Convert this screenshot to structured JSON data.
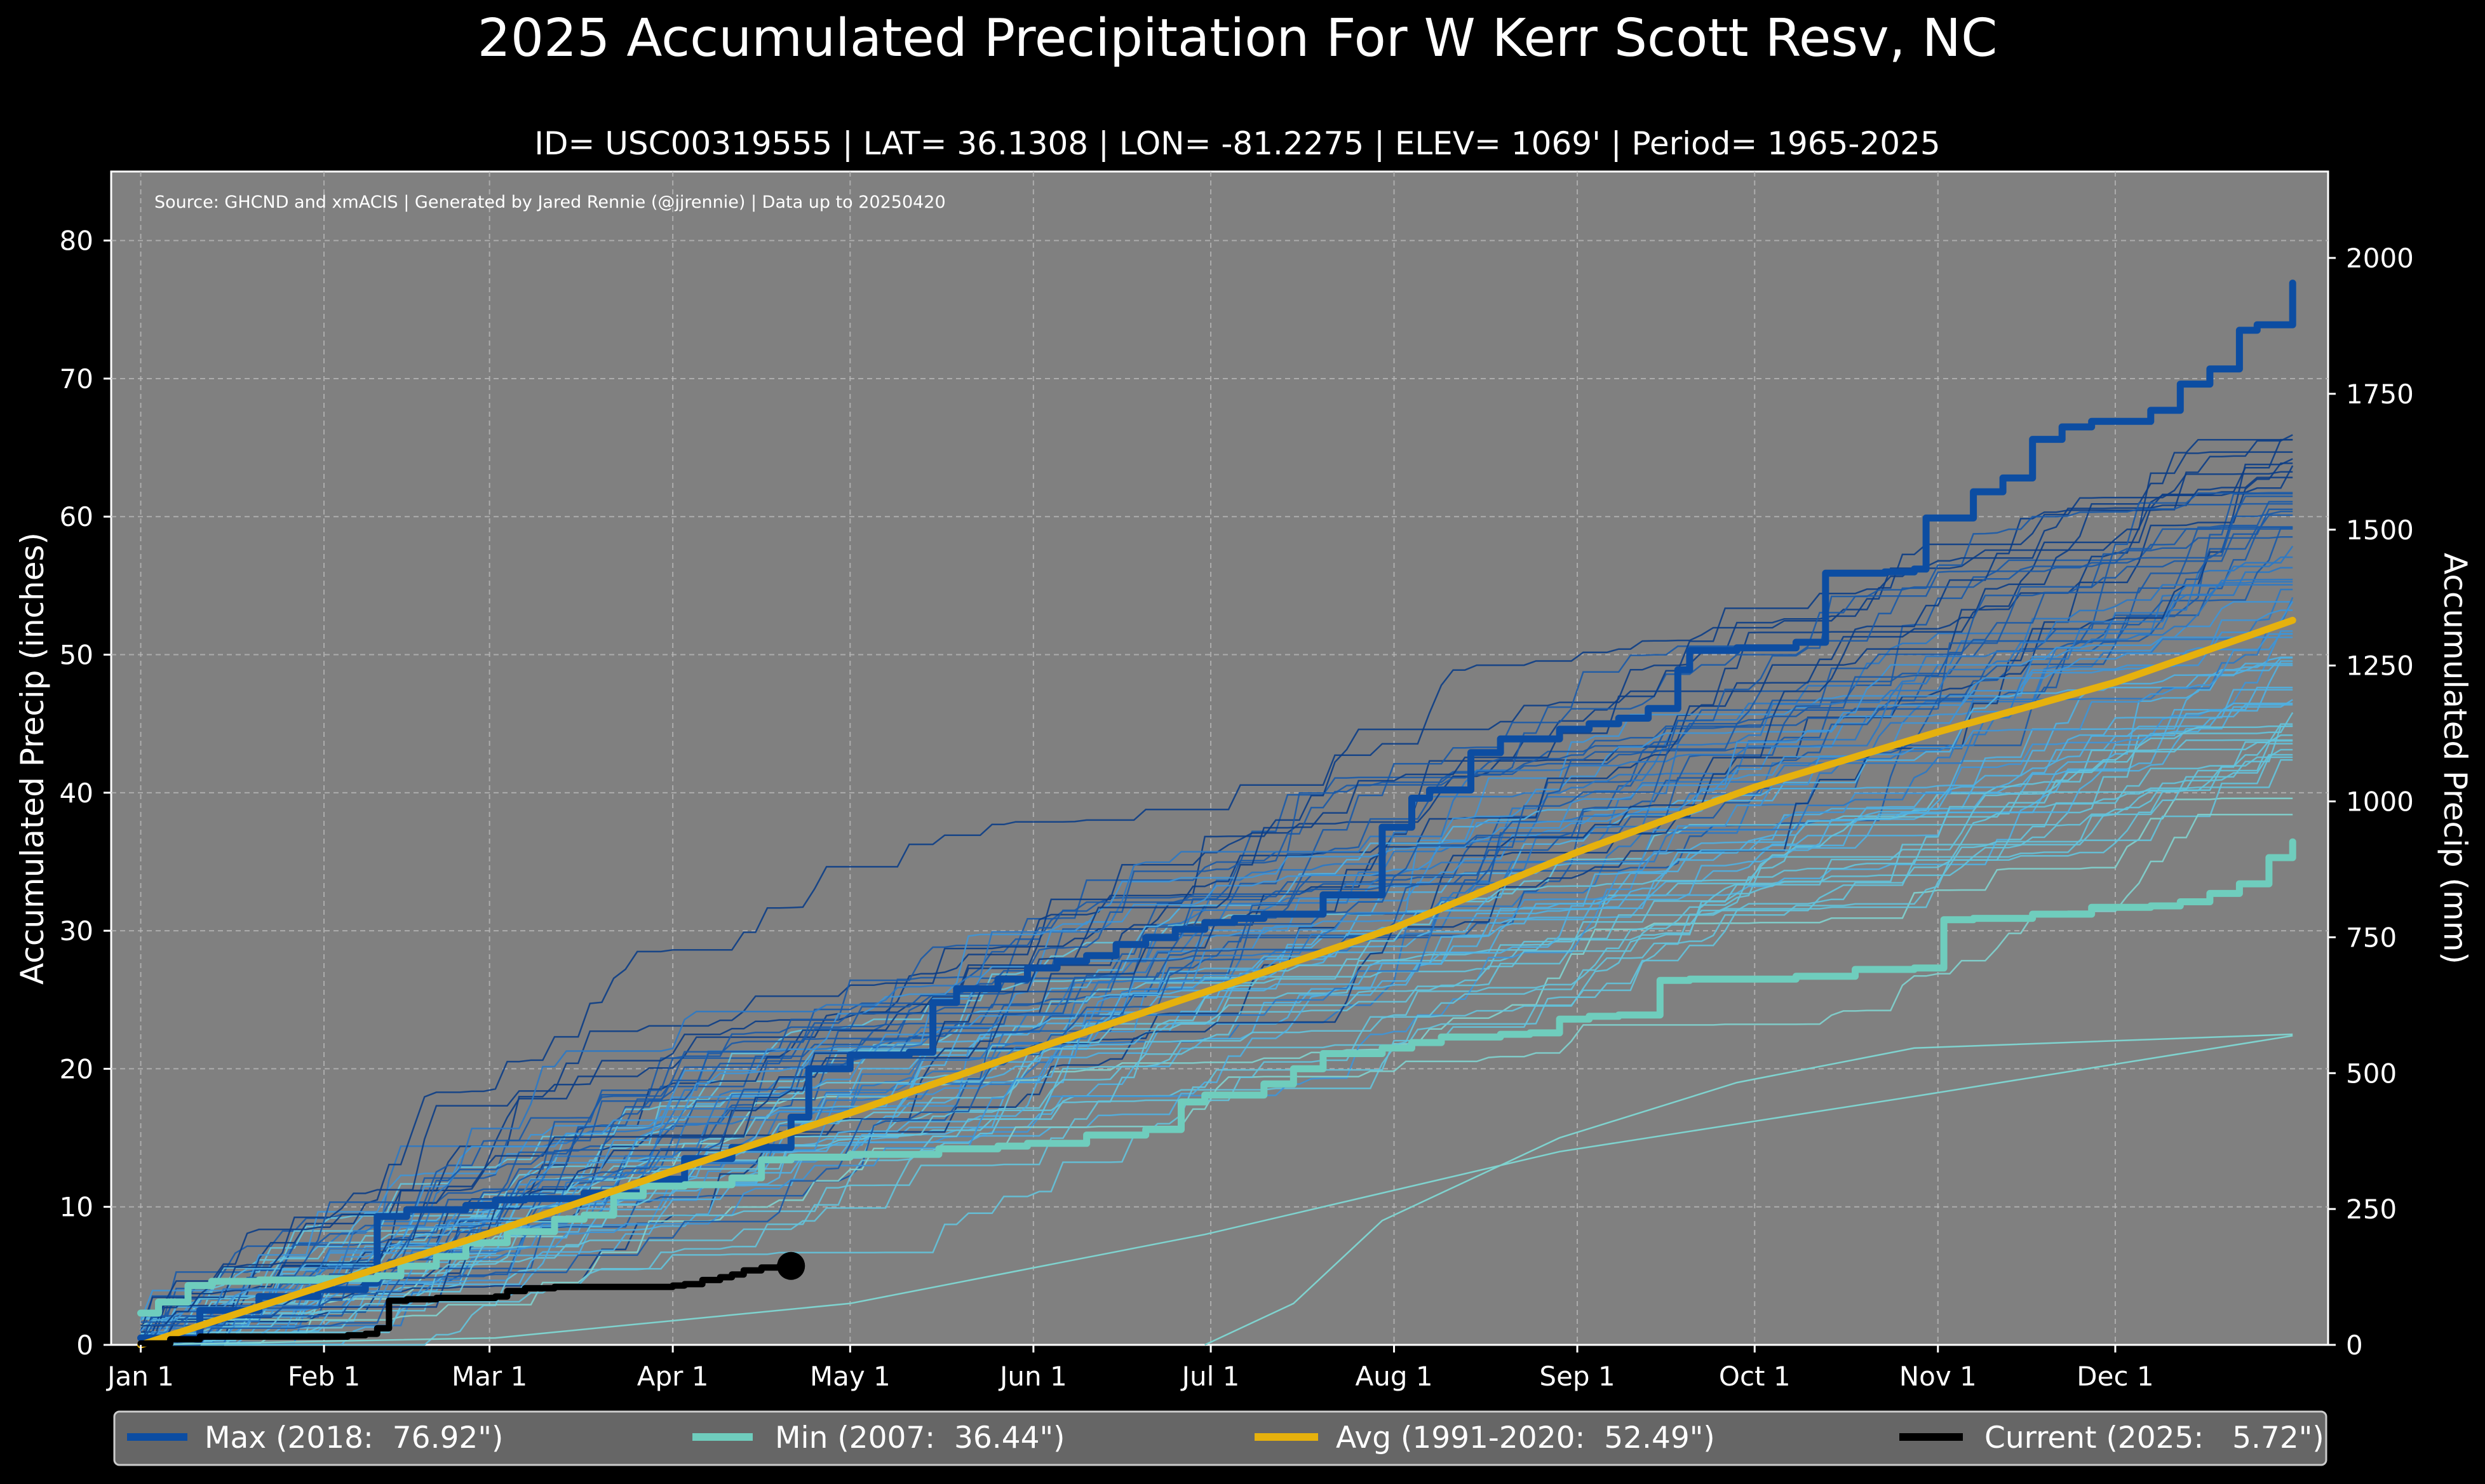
{
  "chart_data": {
    "type": "line",
    "title": "2025 Accumulated Precipitation For W Kerr Scott Resv, NC",
    "subtitle": "ID= USC00319555 | LAT= 36.1308 | LON= -81.2275 | ELEV= 1069' | Period= 1965-2025",
    "source": "Source: GHCND and xmACIS | Generated by Jared Rennie (@jjrennie) | Data up to 20250420",
    "ylabel": "Accumulated Precip (inches)",
    "ylabel_right": "Accumulated Precip (mm)",
    "xlabel": "",
    "ylim": [
      0,
      85
    ],
    "xlim": [
      -5,
      370
    ],
    "y_ticks": [
      "0",
      "10",
      "20",
      "30",
      "40",
      "50",
      "60",
      "70",
      "80"
    ],
    "y_ticks_right": [
      "0",
      "250",
      "500",
      "750",
      "1000",
      "1250",
      "1500",
      "1750",
      "2000"
    ],
    "x_ticks": [
      {
        "day": 0,
        "label": "Jan 1"
      },
      {
        "day": 31,
        "label": "Feb 1"
      },
      {
        "day": 59,
        "label": "Mar 1"
      },
      {
        "day": 90,
        "label": "Apr 1"
      },
      {
        "day": 120,
        "label": "May 1"
      },
      {
        "day": 151,
        "label": "Jun 1"
      },
      {
        "day": 181,
        "label": "Jul 1"
      },
      {
        "day": 212,
        "label": "Aug 1"
      },
      {
        "day": 243,
        "label": "Sep 1"
      },
      {
        "day": 273,
        "label": "Oct 1"
      },
      {
        "day": 304,
        "label": "Nov 1"
      },
      {
        "day": 334,
        "label": "Dec 1"
      }
    ],
    "grid": true,
    "background": "#808080",
    "series": [
      {
        "name": "Max (2018:  76.92\")",
        "color": "#0c4da2",
        "x": [
          0,
          10,
          20,
          30,
          38,
          40,
          45,
          55,
          60,
          65,
          75,
          85,
          92,
          100,
          110,
          113,
          120,
          130,
          134,
          138,
          145,
          150,
          155,
          160,
          165,
          170,
          175,
          180,
          185,
          190,
          200,
          210,
          215,
          218,
          225,
          230,
          240,
          245,
          250,
          255,
          260,
          262,
          270,
          280,
          285,
          295,
          300,
          302,
          310,
          315,
          320,
          325,
          330,
          340,
          345,
          350,
          355,
          358,
          364
        ],
        "y": [
          0.5,
          2.5,
          3.5,
          4,
          4.5,
          9.3,
          9.8,
          10.1,
          10.5,
          10.6,
          11,
          12,
          13.5,
          14.3,
          16.5,
          20,
          21,
          21.2,
          24.8,
          25.8,
          26.5,
          27.3,
          27.8,
          28.2,
          29,
          29.5,
          30.1,
          30.6,
          30.9,
          31.2,
          32.6,
          37.5,
          39.6,
          40.2,
          42.9,
          43.9,
          44.6,
          45,
          45.4,
          46.1,
          48.9,
          50.3,
          50.5,
          50.9,
          55.9,
          56,
          56.2,
          59.9,
          61.8,
          62.8,
          65.6,
          66.5,
          66.9,
          67.7,
          69.6,
          70.7,
          73.5,
          73.9,
          76.92
        ]
      },
      {
        "name": "Min (2007:  36.44\")",
        "color": "#6fcdbd",
        "x": [
          0,
          3,
          8,
          12,
          20,
          30,
          40,
          44,
          50,
          55,
          62,
          70,
          75,
          80,
          85,
          92,
          100,
          105,
          110,
          120,
          135,
          145,
          150,
          160,
          170,
          176,
          180,
          190,
          195,
          200,
          210,
          215,
          220,
          230,
          235,
          240,
          245,
          250,
          257,
          262,
          270,
          280,
          290,
          300,
          305,
          310,
          320,
          330,
          340,
          345,
          350,
          355,
          360,
          364
        ],
        "y": [
          2.3,
          3.1,
          4.3,
          4.6,
          4.7,
          4.8,
          5,
          5.7,
          6.4,
          7.4,
          8.2,
          9.1,
          9.4,
          10.8,
          11.5,
          11.6,
          12.1,
          13.4,
          13.6,
          13.8,
          14.2,
          14.4,
          14.6,
          15.2,
          15.6,
          17.6,
          18.1,
          18.9,
          20,
          21.1,
          21.5,
          21.9,
          22.3,
          22.5,
          22.6,
          23.6,
          23.8,
          23.9,
          26.4,
          26.5,
          26.5,
          26.7,
          27.2,
          27.3,
          30.8,
          30.9,
          31.2,
          31.7,
          31.8,
          32.1,
          32.7,
          33.4,
          35.3,
          36.44
        ]
      },
      {
        "name": "Avg (1991-2020:  52.49\")",
        "color": "#e6b10d",
        "x": [
          0,
          31,
          59,
          90,
          120,
          151,
          181,
          212,
          243,
          273,
          304,
          334,
          364
        ],
        "y": [
          0,
          4.3,
          8.1,
          12.6,
          16.8,
          21.4,
          25.7,
          30.2,
          35.7,
          40.4,
          44.4,
          48,
          52.49
        ]
      },
      {
        "name": "Current (2025:   5.72\")",
        "color": "#000000",
        "x": [
          0,
          5,
          10,
          15,
          20,
          25,
          30,
          35,
          38,
          40,
          42,
          45,
          50,
          60,
          62,
          65,
          70,
          80,
          85,
          90,
          92,
          95,
          98,
          100,
          102,
          105,
          108,
          110
        ],
        "y": [
          0.1,
          0.4,
          0.6,
          0.6,
          0.6,
          0.6,
          0.6,
          0.7,
          0.8,
          1.2,
          3.2,
          3.3,
          3.4,
          3.5,
          3.9,
          4.1,
          4.2,
          4.2,
          4.2,
          4.3,
          4.4,
          4.7,
          4.9,
          5.1,
          5.4,
          5.6,
          5.7,
          5.72
        ]
      }
    ],
    "background_traces_note": "61 annual traces 1965-2025 in blue-teal shades (drawn procedurally)",
    "legend": {
      "placement": "bottom",
      "entries": [
        "Max (2018:  76.92\")",
        "Min (2007:  36.44\")",
        "Avg (1991-2020:  52.49\")",
        "Current (2025:   5.72\")"
      ]
    }
  }
}
